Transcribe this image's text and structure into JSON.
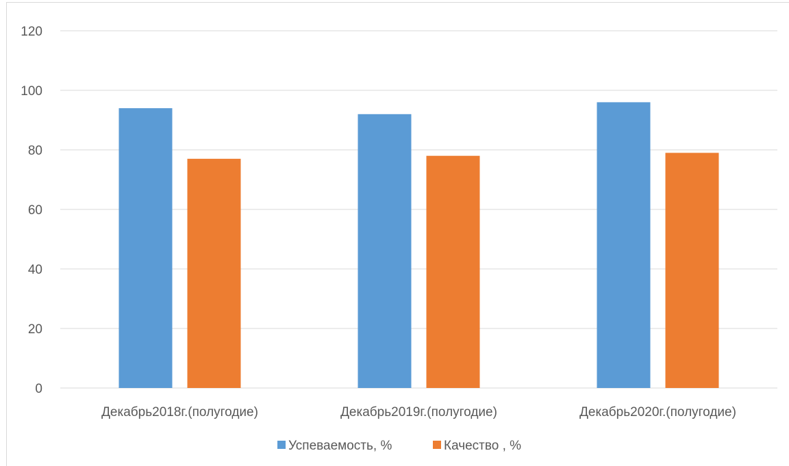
{
  "chart_data": {
    "type": "bar",
    "categories": [
      "Декабрь2018г.(полугодие)",
      "Декабрь2019г.(полугодие)",
      "Декабрь2020г.(полугодие)"
    ],
    "series": [
      {
        "name": "Успеваемость, %",
        "values": [
          94,
          92,
          96
        ],
        "color": "#5b9bd5"
      },
      {
        "name": "Качество , %",
        "values": [
          77,
          78,
          79
        ],
        "color": "#ed7d31"
      }
    ],
    "ylim": [
      0,
      120
    ],
    "yticks": [
      0,
      20,
      40,
      60,
      80,
      100,
      120
    ],
    "grid": true,
    "legend_position": "bottom"
  }
}
